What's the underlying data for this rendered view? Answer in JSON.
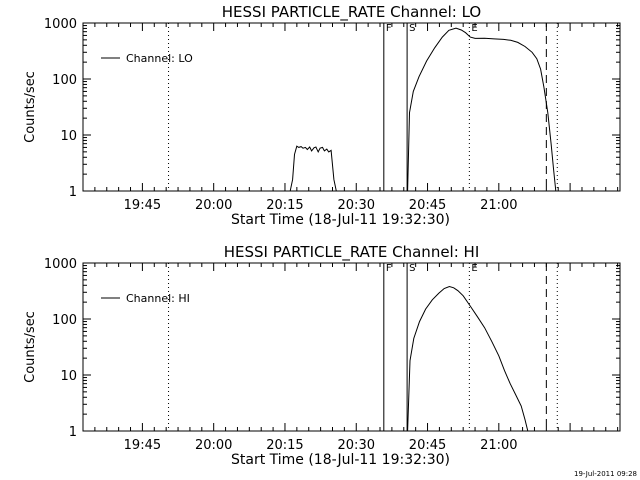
{
  "footer": {
    "timestamp": "19-Jul-2011 09:28"
  },
  "chart_data": [
    {
      "type": "line",
      "title": "HESSI PARTICLE_RATE Channel: LO",
      "xlabel": "Start Time (18-Jul-11 19:32:30)",
      "ylabel": "Counts/sec",
      "x_unit": "minutes after 19:32:30",
      "xlim": [
        0,
        113
      ],
      "ylim": [
        1,
        1000
      ],
      "y_scale": "log",
      "x_ticks": [
        {
          "x": 12.5,
          "label": "19:45"
        },
        {
          "x": 27.5,
          "label": "20:00"
        },
        {
          "x": 42.5,
          "label": "20:15"
        },
        {
          "x": 57.5,
          "label": "20:30"
        },
        {
          "x": 72.5,
          "label": "20:45"
        },
        {
          "x": 87.5,
          "label": "21:00"
        }
      ],
      "y_ticks": [
        {
          "y": 1,
          "label": "1"
        },
        {
          "y": 10,
          "label": "10"
        },
        {
          "y": 100,
          "label": "100"
        },
        {
          "y": 1000,
          "label": "1000"
        }
      ],
      "legend": {
        "label": "Channel: LO",
        "position": "top-left"
      },
      "markers": [
        {
          "x": 18.0,
          "style": "dotted",
          "label": ""
        },
        {
          "x": 63.3,
          "style": "solid",
          "label": "F"
        },
        {
          "x": 68.2,
          "style": "solid",
          "label": "S"
        },
        {
          "x": 81.3,
          "style": "dotted",
          "label": "E"
        },
        {
          "x": 97.5,
          "style": "dashed",
          "label": ""
        },
        {
          "x": 99.8,
          "style": "dotted",
          "label": ""
        }
      ],
      "series": [
        {
          "x": [
            43.6,
            44.1,
            44.5,
            45.0,
            45.4,
            45.9,
            46.3,
            46.8,
            47.2,
            47.7,
            48.1,
            48.6,
            49.0,
            49.5,
            49.9,
            50.4,
            50.8,
            51.3,
            51.7,
            52.2,
            52.8,
            53.3
          ],
          "y": [
            1,
            1.6,
            4.5,
            6.3,
            6.0,
            6.2,
            5.8,
            6.0,
            5.5,
            6.1,
            5.2,
            5.9,
            6.1,
            5.0,
            5.8,
            6.0,
            5.2,
            5.6,
            5.0,
            5.3,
            1.6,
            1
          ]
        },
        {
          "x": [
            68.3,
            68.7,
            69.5,
            70.7,
            72.3,
            74.0,
            75.6,
            77.0,
            78.5,
            79.6,
            80.5,
            81.5,
            82.5,
            84.5,
            86.5,
            88.5,
            90.0,
            91.5,
            93.0,
            94.5,
            95.5,
            96.3,
            97.0,
            97.8,
            98.5,
            99.0,
            99.5
          ],
          "y": [
            1,
            25,
            60,
            110,
            210,
            360,
            560,
            740,
            810,
            750,
            670,
            560,
            530,
            535,
            520,
            510,
            490,
            450,
            380,
            300,
            230,
            150,
            70,
            25,
            7,
            2.5,
            1
          ]
        }
      ]
    },
    {
      "type": "line",
      "title": "HESSI PARTICLE_RATE Channel: HI",
      "xlabel": "Start Time (18-Jul-11 19:32:30)",
      "ylabel": "Counts/sec",
      "x_unit": "minutes after 19:32:30",
      "xlim": [
        0,
        113
      ],
      "ylim": [
        1,
        1000
      ],
      "y_scale": "log",
      "x_ticks": [
        {
          "x": 12.5,
          "label": "19:45"
        },
        {
          "x": 27.5,
          "label": "20:00"
        },
        {
          "x": 42.5,
          "label": "20:15"
        },
        {
          "x": 57.5,
          "label": "20:30"
        },
        {
          "x": 72.5,
          "label": "20:45"
        },
        {
          "x": 87.5,
          "label": "21:00"
        }
      ],
      "y_ticks": [
        {
          "y": 1,
          "label": "1"
        },
        {
          "y": 10,
          "label": "10"
        },
        {
          "y": 100,
          "label": "100"
        },
        {
          "y": 1000,
          "label": "1000"
        }
      ],
      "legend": {
        "label": "Channel: HI",
        "position": "top-left"
      },
      "markers": [
        {
          "x": 18.0,
          "style": "dotted",
          "label": ""
        },
        {
          "x": 63.3,
          "style": "solid",
          "label": "F"
        },
        {
          "x": 68.2,
          "style": "solid",
          "label": "S"
        },
        {
          "x": 81.3,
          "style": "dotted",
          "label": "E"
        },
        {
          "x": 97.5,
          "style": "dashed",
          "label": ""
        },
        {
          "x": 99.8,
          "style": "dotted",
          "label": ""
        }
      ],
      "series": [
        {
          "x": [
            68.3,
            68.8,
            69.6,
            70.8,
            72.1,
            73.5,
            74.9,
            76.0,
            77.1,
            78.0,
            78.9,
            80.0,
            81.5,
            83.0,
            84.5,
            86.0,
            87.5,
            88.7,
            89.9,
            91.0,
            92.2,
            93.0,
            93.6
          ],
          "y": [
            1,
            18,
            45,
            90,
            150,
            220,
            290,
            350,
            380,
            360,
            320,
            260,
            170,
            110,
            70,
            40,
            22,
            12,
            7,
            4.5,
            2.8,
            1.6,
            1
          ]
        }
      ]
    }
  ]
}
